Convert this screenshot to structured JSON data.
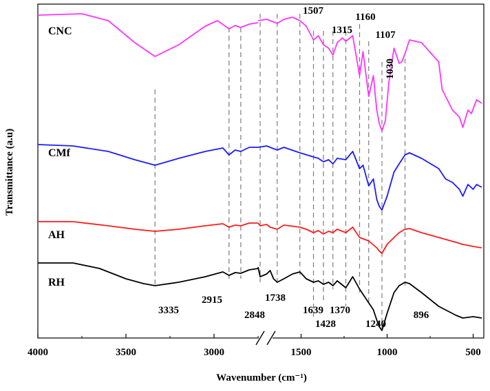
{
  "chart_data": {
    "type": "line",
    "xlabel": "Wavenumber (cm⁻¹)",
    "ylabel": "Transmittance (a.u)",
    "x_reversed": true,
    "x_broken": true,
    "x_segments": [
      [
        4000,
        2750
      ],
      [
        1750,
        450
      ]
    ],
    "xticks": [
      4000,
      3500,
      3000,
      1500,
      1000,
      500
    ],
    "yticks_shown": false,
    "grid": false,
    "legend": "none (series names printed beside curves)",
    "series": [
      {
        "name": "CNC",
        "color": "#ff33ff",
        "points": [
          [
            4000,
            22
          ],
          [
            3750,
            20
          ],
          [
            3600,
            30
          ],
          [
            3450,
            62
          ],
          [
            3335,
            82
          ],
          [
            3200,
            65
          ],
          [
            3050,
            38
          ],
          [
            2980,
            30
          ],
          [
            2915,
            42
          ],
          [
            2880,
            37
          ],
          [
            2848,
            40
          ],
          [
            2800,
            35
          ],
          [
            2750,
            33
          ],
          [
            1750,
            30
          ],
          [
            1700,
            28
          ],
          [
            1680,
            30
          ],
          [
            1639,
            34
          ],
          [
            1600,
            28
          ],
          [
            1550,
            25
          ],
          [
            1507,
            30
          ],
          [
            1470,
            38
          ],
          [
            1428,
            58
          ],
          [
            1400,
            52
          ],
          [
            1370,
            65
          ],
          [
            1340,
            70
          ],
          [
            1315,
            80
          ],
          [
            1290,
            62
          ],
          [
            1260,
            55
          ],
          [
            1240,
            60
          ],
          [
            1200,
            52
          ],
          [
            1160,
            110
          ],
          [
            1140,
            75
          ],
          [
            1107,
            140
          ],
          [
            1080,
            110
          ],
          [
            1060,
            160
          ],
          [
            1045,
            180
          ],
          [
            1030,
            190
          ],
          [
            1010,
            175
          ],
          [
            990,
            120
          ],
          [
            960,
            70
          ],
          [
            930,
            92
          ],
          [
            915,
            90
          ],
          [
            896,
            78
          ],
          [
            870,
            58
          ],
          [
            800,
            62
          ],
          [
            700,
            90
          ],
          [
            680,
            130
          ],
          [
            660,
            140
          ],
          [
            620,
            160
          ],
          [
            580,
            170
          ],
          [
            560,
            185
          ],
          [
            530,
            160
          ],
          [
            510,
            165
          ],
          [
            480,
            145
          ],
          [
            450,
            150
          ]
        ]
      },
      {
        "name": "CMf",
        "color": "#1a1aff",
        "points": [
          [
            4000,
            210
          ],
          [
            3800,
            212
          ],
          [
            3600,
            220
          ],
          [
            3450,
            232
          ],
          [
            3335,
            240
          ],
          [
            3200,
            230
          ],
          [
            3050,
            220
          ],
          [
            2950,
            215
          ],
          [
            2915,
            225
          ],
          [
            2880,
            218
          ],
          [
            2848,
            220
          ],
          [
            2800,
            214
          ],
          [
            2750,
            214
          ],
          [
            1750,
            214
          ],
          [
            1700,
            212
          ],
          [
            1680,
            214
          ],
          [
            1639,
            218
          ],
          [
            1600,
            214
          ],
          [
            1507,
            222
          ],
          [
            1480,
            224
          ],
          [
            1428,
            228
          ],
          [
            1400,
            230
          ],
          [
            1370,
            235
          ],
          [
            1340,
            232
          ],
          [
            1315,
            238
          ],
          [
            1290,
            230
          ],
          [
            1240,
            232
          ],
          [
            1200,
            220
          ],
          [
            1160,
            245
          ],
          [
            1140,
            240
          ],
          [
            1107,
            270
          ],
          [
            1080,
            260
          ],
          [
            1060,
            290
          ],
          [
            1045,
            300
          ],
          [
            1030,
            305
          ],
          [
            1000,
            285
          ],
          [
            960,
            250
          ],
          [
            930,
            238
          ],
          [
            896,
            225
          ],
          [
            870,
            222
          ],
          [
            800,
            230
          ],
          [
            700,
            245
          ],
          [
            660,
            260
          ],
          [
            620,
            265
          ],
          [
            580,
            275
          ],
          [
            560,
            285
          ],
          [
            530,
            268
          ],
          [
            500,
            275
          ],
          [
            480,
            268
          ],
          [
            450,
            272
          ]
        ]
      },
      {
        "name": "AH",
        "color": "#ff1a1a",
        "points": [
          [
            4000,
            322
          ],
          [
            3800,
            322
          ],
          [
            3600,
            328
          ],
          [
            3450,
            333
          ],
          [
            3335,
            336
          ],
          [
            3200,
            333
          ],
          [
            3050,
            328
          ],
          [
            2950,
            325
          ],
          [
            2915,
            330
          ],
          [
            2880,
            327
          ],
          [
            2848,
            328
          ],
          [
            2800,
            324
          ],
          [
            2750,
            324
          ],
          [
            1750,
            324
          ],
          [
            1738,
            328
          ],
          [
            1700,
            326
          ],
          [
            1680,
            330
          ],
          [
            1639,
            333
          ],
          [
            1600,
            327
          ],
          [
            1507,
            330
          ],
          [
            1470,
            333
          ],
          [
            1428,
            338
          ],
          [
            1400,
            335
          ],
          [
            1370,
            340
          ],
          [
            1340,
            336
          ],
          [
            1315,
            338
          ],
          [
            1290,
            333
          ],
          [
            1240,
            338
          ],
          [
            1200,
            330
          ],
          [
            1160,
            345
          ],
          [
            1107,
            350
          ],
          [
            1060,
            360
          ],
          [
            1045,
            365
          ],
          [
            1030,
            368
          ],
          [
            1000,
            355
          ],
          [
            960,
            345
          ],
          [
            930,
            338
          ],
          [
            896,
            333
          ],
          [
            870,
            332
          ],
          [
            800,
            338
          ],
          [
            700,
            345
          ],
          [
            600,
            352
          ],
          [
            560,
            355
          ],
          [
            500,
            358
          ],
          [
            450,
            360
          ]
        ]
      },
      {
        "name": "RH",
        "color": "#000000",
        "points": [
          [
            4000,
            382
          ],
          [
            3800,
            382
          ],
          [
            3650,
            390
          ],
          [
            3500,
            405
          ],
          [
            3400,
            412
          ],
          [
            3335,
            415
          ],
          [
            3200,
            410
          ],
          [
            3050,
            402
          ],
          [
            2950,
            395
          ],
          [
            2915,
            400
          ],
          [
            2880,
            396
          ],
          [
            2848,
            397
          ],
          [
            2800,
            392
          ],
          [
            2750,
            390
          ],
          [
            1750,
            388
          ],
          [
            1738,
            402
          ],
          [
            1700,
            398
          ],
          [
            1680,
            393
          ],
          [
            1660,
            405
          ],
          [
            1639,
            410
          ],
          [
            1600,
            405
          ],
          [
            1550,
            398
          ],
          [
            1507,
            395
          ],
          [
            1470,
            405
          ],
          [
            1428,
            410
          ],
          [
            1400,
            408
          ],
          [
            1370,
            413
          ],
          [
            1340,
            410
          ],
          [
            1315,
            415
          ],
          [
            1290,
            408
          ],
          [
            1240,
            418
          ],
          [
            1200,
            402
          ],
          [
            1160,
            420
          ],
          [
            1107,
            440
          ],
          [
            1080,
            450
          ],
          [
            1060,
            465
          ],
          [
            1045,
            475
          ],
          [
            1030,
            480
          ],
          [
            1000,
            455
          ],
          [
            960,
            425
          ],
          [
            930,
            415
          ],
          [
            896,
            410
          ],
          [
            870,
            412
          ],
          [
            800,
            425
          ],
          [
            700,
            445
          ],
          [
            600,
            458
          ],
          [
            560,
            462
          ],
          [
            500,
            460
          ],
          [
            450,
            462
          ]
        ]
      }
    ],
    "peak_lines": [
      {
        "wavenumber": 3335,
        "label": "3335",
        "label_side": "bottom"
      },
      {
        "wavenumber": 2915,
        "label": "2915",
        "label_side": "bottom"
      },
      {
        "wavenumber": 2848,
        "label": "2848",
        "label_side": "bottom"
      },
      {
        "wavenumber": 1738,
        "label": "1738",
        "label_side": "bottom"
      },
      {
        "wavenumber": 1639,
        "label": "1639",
        "label_side": "bottom"
      },
      {
        "wavenumber": 1507,
        "label": "1507",
        "label_side": "top"
      },
      {
        "wavenumber": 1428,
        "label": "1428",
        "label_side": "bottom"
      },
      {
        "wavenumber": 1370,
        "label": "1370",
        "label_side": "bottom"
      },
      {
        "wavenumber": 1315,
        "label": "1315",
        "label_side": "top"
      },
      {
        "wavenumber": 1240,
        "label": "1240",
        "label_side": "bottom"
      },
      {
        "wavenumber": 1160,
        "label": "1160",
        "label_side": "top"
      },
      {
        "wavenumber": 1107,
        "label": "1107",
        "label_side": "top"
      },
      {
        "wavenumber": 1030,
        "label": "1030",
        "label_side": "top-rotated"
      },
      {
        "wavenumber": 896,
        "label": "896",
        "label_side": "bottom"
      }
    ]
  }
}
